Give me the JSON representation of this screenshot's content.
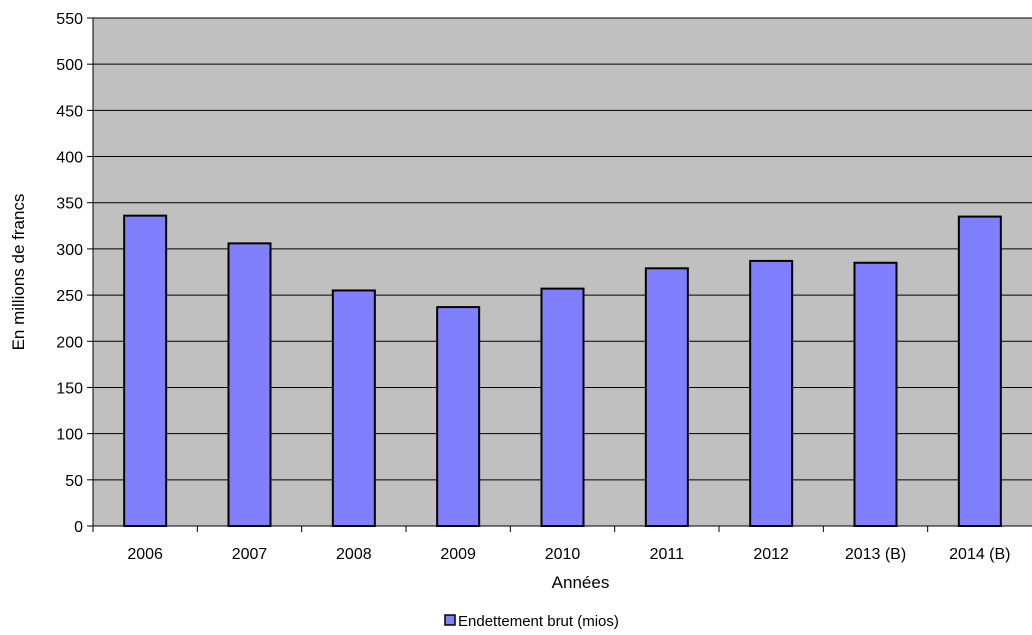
{
  "chart_data": {
    "type": "bar",
    "categories": [
      "2006",
      "2007",
      "2008",
      "2009",
      "2010",
      "2011",
      "2012",
      "2013 (B)",
      "2014 (B)"
    ],
    "series": [
      {
        "name": "Endettement brut (mios)",
        "values": [
          336,
          306,
          255,
          237,
          257,
          279,
          287,
          285,
          335
        ],
        "color": "#8080ff"
      }
    ],
    "xlabel": "Années",
    "ylabel": "En millions de francs",
    "ylim": [
      0,
      550
    ],
    "yticks": [
      0,
      50,
      100,
      150,
      200,
      250,
      300,
      350,
      400,
      450,
      500,
      550
    ],
    "grid": true,
    "legend_position": "bottom",
    "plot_background": "#c0c0c0"
  }
}
